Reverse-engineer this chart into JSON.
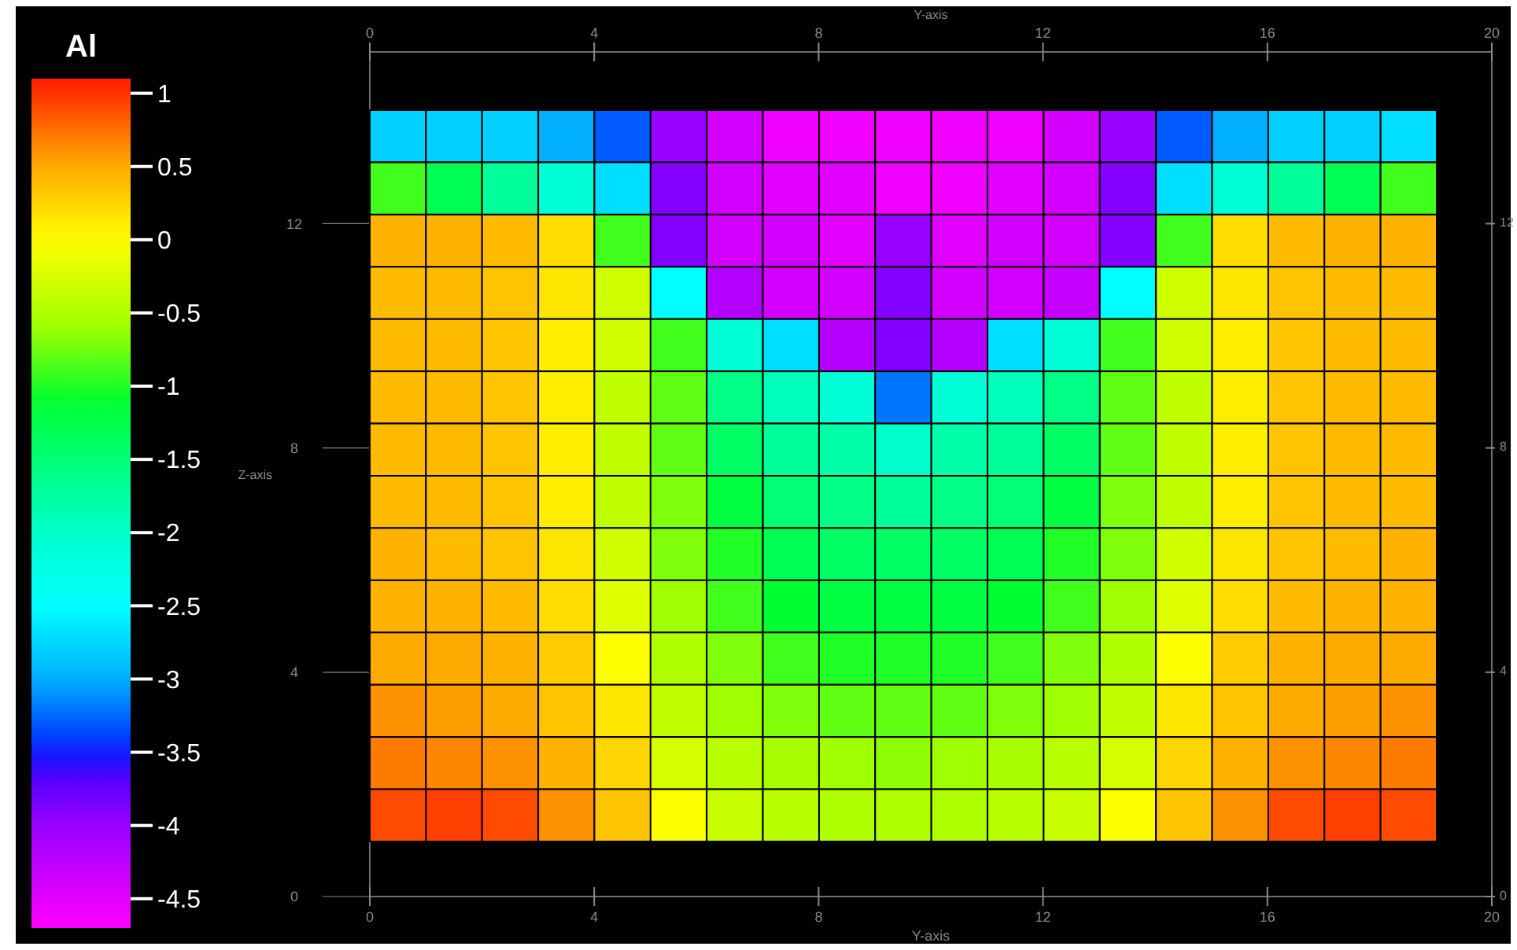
{
  "chart_data": {
    "type": "heatmap",
    "clabel": "Al",
    "categories": [
      null,
      null,
      null,
      null,
      null,
      null,
      null,
      null,
      null,
      null,
      null,
      null,
      null,
      null,
      null,
      null,
      null,
      null,
      null
    ],
    "y_categories": [
      null,
      null,
      null,
      null,
      null,
      null,
      null,
      null,
      null,
      null,
      null,
      null,
      null,
      null
    ],
    "annotations": [
      "0",
      "4",
      "8",
      "12",
      "16",
      "20",
      "0",
      "4",
      "8",
      "12",
      "16",
      "20",
      "0",
      "4",
      "8",
      "12",
      "0",
      "4",
      "8",
      "12",
      "Y-axis",
      "Z-axis",
      "Y-axis"
    ],
    "clim": [
      1.1,
      -4.7
    ],
    "cticks": [
      1,
      0.5,
      0,
      -0.5,
      -1,
      -1.5,
      -2,
      -2.5,
      -3,
      -3.5,
      -4,
      -4.5
    ],
    "cells": [
      [
        -2.8,
        -2.8,
        -2.8,
        -3.0,
        -3.3,
        -4.0,
        -4.4,
        -4.6,
        -4.6,
        -4.6,
        -4.6,
        -4.6,
        -4.4,
        -4.0,
        -3.3,
        -3.0,
        -2.8,
        -2.8,
        -2.7
      ],
      [
        -0.9,
        -1.3,
        -1.7,
        -2.1,
        -2.7,
        -3.9,
        -4.4,
        -4.5,
        -4.5,
        -4.6,
        -4.6,
        -4.5,
        -4.4,
        -3.9,
        -2.7,
        -2.1,
        -1.7,
        -1.3,
        -0.9
      ],
      [
        0.45,
        0.45,
        0.4,
        0.2,
        -0.9,
        -3.9,
        -4.4,
        -4.4,
        -4.5,
        -4.0,
        -4.5,
        -4.4,
        -4.4,
        -3.9,
        -0.9,
        0.2,
        0.4,
        0.45,
        0.45
      ],
      [
        0.4,
        0.4,
        0.35,
        0.15,
        -0.3,
        -2.5,
        -4.2,
        -4.4,
        -4.4,
        -3.9,
        -4.4,
        -4.4,
        -4.3,
        -2.5,
        -0.3,
        0.15,
        0.35,
        0.4,
        0.4
      ],
      [
        0.4,
        0.4,
        0.35,
        0.1,
        -0.3,
        -0.9,
        -2.1,
        -2.7,
        -4.2,
        -3.9,
        -4.2,
        -2.7,
        -2.1,
        -0.9,
        -0.3,
        0.1,
        0.35,
        0.4,
        0.4
      ],
      [
        0.4,
        0.4,
        0.35,
        0.1,
        -0.4,
        -0.8,
        -1.6,
        -1.9,
        -2.1,
        -3.2,
        -2.1,
        -1.9,
        -1.6,
        -0.8,
        -0.4,
        0.1,
        0.35,
        0.4,
        0.4
      ],
      [
        0.4,
        0.4,
        0.35,
        0.1,
        -0.4,
        -0.8,
        -1.4,
        -1.7,
        -1.8,
        -2.0,
        -1.8,
        -1.7,
        -1.4,
        -0.8,
        -0.4,
        0.1,
        0.35,
        0.4,
        0.4
      ],
      [
        0.4,
        0.4,
        0.35,
        0.1,
        -0.4,
        -0.7,
        -1.2,
        -1.5,
        -1.6,
        -1.7,
        -1.6,
        -1.5,
        -1.2,
        -0.7,
        -0.4,
        0.1,
        0.35,
        0.4,
        0.4
      ],
      [
        0.45,
        0.4,
        0.35,
        0.15,
        -0.3,
        -0.7,
        -1.0,
        -1.3,
        -1.4,
        -1.4,
        -1.4,
        -1.3,
        -1.0,
        -0.7,
        -0.3,
        0.15,
        0.35,
        0.4,
        0.45
      ],
      [
        0.45,
        0.45,
        0.4,
        0.2,
        -0.2,
        -0.6,
        -0.9,
        -1.1,
        -1.2,
        -1.2,
        -1.2,
        -1.1,
        -0.9,
        -0.6,
        -0.2,
        0.2,
        0.4,
        0.45,
        0.45
      ],
      [
        0.5,
        0.5,
        0.45,
        0.3,
        0,
        -0.5,
        -0.7,
        -0.9,
        -1.0,
        -1.0,
        -1.0,
        -0.9,
        -0.7,
        -0.5,
        0,
        0.3,
        0.45,
        0.5,
        0.5
      ],
      [
        0.6,
        0.55,
        0.5,
        0.35,
        0.15,
        -0.4,
        -0.6,
        -0.7,
        -0.8,
        -0.8,
        -0.8,
        -0.7,
        -0.6,
        -0.4,
        0.15,
        0.35,
        0.5,
        0.55,
        0.6
      ],
      [
        0.7,
        0.65,
        0.6,
        0.45,
        0.25,
        -0.25,
        -0.45,
        -0.55,
        -0.6,
        -0.65,
        -0.6,
        -0.55,
        -0.45,
        -0.25,
        0.25,
        0.45,
        0.6,
        0.65,
        0.7
      ],
      [
        0.9,
        0.95,
        0.9,
        0.6,
        0.35,
        0,
        -0.35,
        -0.45,
        -0.5,
        -0.5,
        -0.5,
        -0.45,
        -0.35,
        0,
        0.35,
        0.6,
        0.9,
        0.95,
        0.9
      ]
    ]
  }
}
